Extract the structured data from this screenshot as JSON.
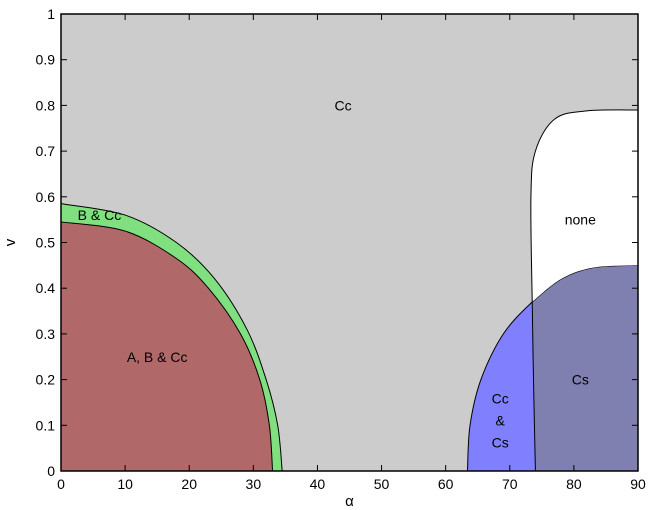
{
  "chart_data": {
    "type": "area",
    "title": "",
    "xlabel": "α",
    "ylabel": "v",
    "xlim": [
      0,
      90
    ],
    "ylim": [
      0,
      1
    ],
    "xticks": [
      "0",
      "10",
      "20",
      "30",
      "40",
      "50",
      "60",
      "70",
      "80",
      "90"
    ],
    "yticks": [
      "0",
      "0.1",
      "0.2",
      "0.3",
      "0.4",
      "0.5",
      "0.6",
      "0.7",
      "0.8",
      "0.9",
      "1"
    ],
    "grid": false,
    "legend": "none",
    "regions": [
      {
        "name": "Cc",
        "color": "#cccccc",
        "label_lines": [
          "Cc"
        ],
        "label_at": {
          "x": 44,
          "y": 0.8
        }
      },
      {
        "name": "B & Cc",
        "color": "#80e080",
        "label_lines": [
          "B & Cc"
        ],
        "label_at": {
          "x": 6,
          "y": 0.56
        },
        "boundary": [
          {
            "x": 0,
            "y": 0.585
          },
          {
            "x": 10,
            "y": 0.56
          },
          {
            "x": 18,
            "y": 0.5
          },
          {
            "x": 24,
            "y": 0.42
          },
          {
            "x": 29,
            "y": 0.31
          },
          {
            "x": 32,
            "y": 0.2
          },
          {
            "x": 33.8,
            "y": 0.1
          },
          {
            "x": 34.5,
            "y": 0.0
          }
        ]
      },
      {
        "name": "A, B & Cc",
        "color": "#b06868",
        "label_lines": [
          "A, B & Cc"
        ],
        "label_at": {
          "x": 15,
          "y": 0.25
        },
        "boundary": [
          {
            "x": 0,
            "y": 0.545
          },
          {
            "x": 10,
            "y": 0.525
          },
          {
            "x": 18,
            "y": 0.465
          },
          {
            "x": 23,
            "y": 0.4
          },
          {
            "x": 28,
            "y": 0.3
          },
          {
            "x": 31,
            "y": 0.2
          },
          {
            "x": 32.5,
            "y": 0.1
          },
          {
            "x": 33,
            "y": 0.0
          }
        ]
      },
      {
        "name": "Cc & Cs",
        "color": "#8080ff",
        "label_lines": [
          "Cc",
          "&",
          "Cs"
        ],
        "label_at": {
          "x": 68.5,
          "y": 0.11
        },
        "boundary": [
          {
            "x": 63.4,
            "y": 0.0
          },
          {
            "x": 63.8,
            "y": 0.1
          },
          {
            "x": 65.5,
            "y": 0.2
          },
          {
            "x": 69,
            "y": 0.3
          },
          {
            "x": 73.5,
            "y": 0.37
          },
          {
            "x": 78,
            "y": 0.42
          },
          {
            "x": 83,
            "y": 0.445
          },
          {
            "x": 90,
            "y": 0.45
          }
        ]
      },
      {
        "name": "Cs",
        "color": "#8080b0",
        "label_lines": [
          "Cs"
        ],
        "label_at": {
          "x": 81,
          "y": 0.2
        },
        "divider": [
          {
            "x": 73.5,
            "y": 0.37
          },
          {
            "x": 73.7,
            "y": 0.2
          },
          {
            "x": 74,
            "y": 0.0
          }
        ]
      },
      {
        "name": "none",
        "color": "#ffffff",
        "label_lines": [
          "none"
        ],
        "label_at": {
          "x": 81,
          "y": 0.55
        },
        "boundary": [
          {
            "x": 73.5,
            "y": 0.37
          },
          {
            "x": 73.3,
            "y": 0.6
          },
          {
            "x": 74,
            "y": 0.7
          },
          {
            "x": 77,
            "y": 0.77
          },
          {
            "x": 82,
            "y": 0.788
          },
          {
            "x": 90,
            "y": 0.79
          }
        ],
        "lower_boundary": [
          {
            "x": 73.5,
            "y": 0.37
          },
          {
            "x": 78,
            "y": 0.42
          },
          {
            "x": 83,
            "y": 0.445
          },
          {
            "x": 90,
            "y": 0.45
          }
        ]
      }
    ]
  }
}
